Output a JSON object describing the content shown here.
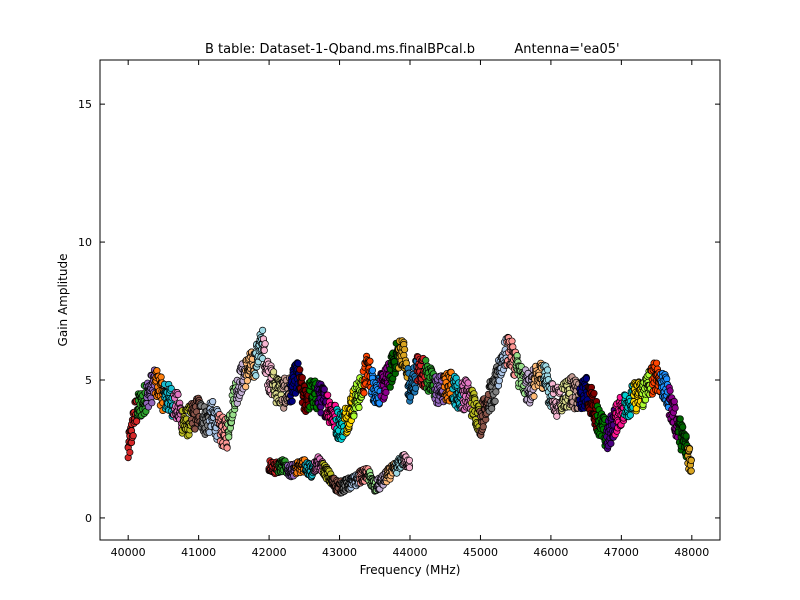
{
  "chart_data": {
    "type": "scatter",
    "title_left": "B table: Dataset-1-Qband.ms.finalBPcal.b",
    "title_right": "Antenna='ea05'",
    "xlabel": "Frequency (MHz)",
    "ylabel": "Gain Amplitude",
    "xlim": [
      39600,
      48400
    ],
    "ylim": [
      -0.8,
      16.6
    ],
    "xticks": [
      40000,
      41000,
      42000,
      43000,
      44000,
      45000,
      46000,
      47000,
      48000
    ],
    "yticks": [
      0,
      5,
      10,
      15
    ],
    "grid": false,
    "legend": "none",
    "marker": "circle",
    "marker_edge_color": "#000000",
    "series_colors": [
      "#1f77b4",
      "#d62728",
      "#2ca02c",
      "#9467bd",
      "#ff7f0e",
      "#17becf",
      "#e377c2",
      "#bcbd22",
      "#8c564b",
      "#7f7f7f",
      "#aec7e8",
      "#ff9896",
      "#98df8a",
      "#c5b0d5",
      "#ffbb78",
      "#9edae5",
      "#f7b6d2",
      "#dbdb8d",
      "#c49c94",
      "#000080",
      "#800000",
      "#008000",
      "#4b0082",
      "#ff1493",
      "#00ced1",
      "#ffd700",
      "#adff2f",
      "#ff4500",
      "#1e90ff",
      "#8b008b",
      "#006400",
      "#daa520"
    ],
    "upper_band": [
      [
        40000,
        2.4
      ],
      [
        40100,
        3.8
      ],
      [
        40200,
        4.2
      ],
      [
        40300,
        4.6
      ],
      [
        40400,
        4.9
      ],
      [
        40500,
        4.4
      ],
      [
        40600,
        4.3
      ],
      [
        40700,
        4.0
      ],
      [
        40800,
        3.4
      ],
      [
        40900,
        3.6
      ],
      [
        41000,
        3.9
      ],
      [
        41100,
        3.5
      ],
      [
        41200,
        3.7
      ],
      [
        41300,
        3.2
      ],
      [
        41400,
        3.0
      ],
      [
        41500,
        4.4
      ],
      [
        41600,
        5.0
      ],
      [
        41700,
        5.4
      ],
      [
        41800,
        5.6
      ],
      [
        41900,
        6.4
      ],
      [
        42000,
        5.1
      ],
      [
        42100,
        4.7
      ],
      [
        42200,
        4.5
      ],
      [
        42300,
        4.6
      ],
      [
        42400,
        5.2
      ],
      [
        42500,
        4.3
      ],
      [
        42600,
        4.5
      ],
      [
        42700,
        4.4
      ],
      [
        42800,
        4.2
      ],
      [
        42900,
        3.8
      ],
      [
        43000,
        3.3
      ],
      [
        43100,
        3.6
      ],
      [
        43200,
        4.2
      ],
      [
        43300,
        4.6
      ],
      [
        43400,
        5.5
      ],
      [
        43500,
        4.6
      ],
      [
        43600,
        4.7
      ],
      [
        43700,
        5.1
      ],
      [
        43800,
        5.8
      ],
      [
        43900,
        6.1
      ],
      [
        44000,
        4.5
      ],
      [
        44100,
        5.4
      ],
      [
        44200,
        5.3
      ],
      [
        44300,
        4.9
      ],
      [
        44400,
        4.6
      ],
      [
        44500,
        4.7
      ],
      [
        44600,
        4.8
      ],
      [
        44700,
        4.4
      ],
      [
        44800,
        4.5
      ],
      [
        44900,
        4.1
      ],
      [
        45000,
        3.5
      ],
      [
        45100,
        4.3
      ],
      [
        45200,
        4.6
      ],
      [
        45300,
        5.7
      ],
      [
        45400,
        6.1
      ],
      [
        45500,
        5.6
      ],
      [
        45600,
        4.9
      ],
      [
        45700,
        4.7
      ],
      [
        45800,
        5.0
      ],
      [
        45900,
        5.3
      ],
      [
        46000,
        4.4
      ],
      [
        46100,
        4.2
      ],
      [
        46200,
        4.5
      ],
      [
        46300,
        4.6
      ],
      [
        46400,
        4.3
      ],
      [
        46500,
        4.6
      ],
      [
        46600,
        4.1
      ],
      [
        46700,
        3.4
      ],
      [
        46800,
        2.9
      ],
      [
        46900,
        3.5
      ],
      [
        47000,
        3.9
      ],
      [
        47100,
        4.2
      ],
      [
        47200,
        4.4
      ],
      [
        47300,
        4.5
      ],
      [
        47400,
        4.9
      ],
      [
        47500,
        5.2
      ],
      [
        47600,
        4.8
      ],
      [
        47700,
        4.1
      ],
      [
        47800,
        3.3
      ],
      [
        47900,
        2.7
      ],
      [
        48000,
        2.0
      ]
    ],
    "lower_band": [
      [
        42000,
        1.9
      ],
      [
        42100,
        1.8
      ],
      [
        42200,
        1.9
      ],
      [
        42300,
        1.7
      ],
      [
        42400,
        1.8
      ],
      [
        42500,
        1.9
      ],
      [
        42600,
        1.7
      ],
      [
        42700,
        2.0
      ],
      [
        42800,
        1.7
      ],
      [
        42900,
        1.3
      ],
      [
        43000,
        1.1
      ],
      [
        43100,
        1.2
      ],
      [
        43200,
        1.3
      ],
      [
        43300,
        1.5
      ],
      [
        43400,
        1.6
      ],
      [
        43500,
        1.1
      ],
      [
        43600,
        1.3
      ],
      [
        43700,
        1.6
      ],
      [
        43800,
        1.8
      ],
      [
        43900,
        2.1
      ],
      [
        44000,
        2.0
      ]
    ]
  }
}
